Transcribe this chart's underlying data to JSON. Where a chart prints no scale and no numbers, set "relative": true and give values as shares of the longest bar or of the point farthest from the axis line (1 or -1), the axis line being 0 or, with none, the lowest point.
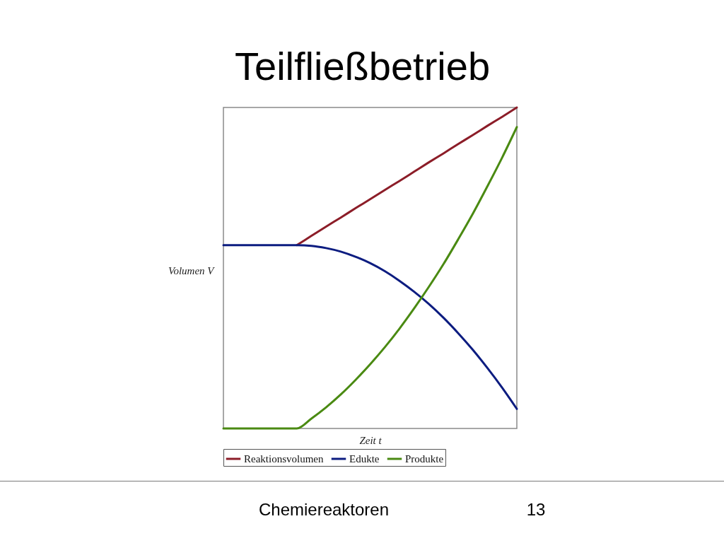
{
  "chart_data": {
    "type": "line",
    "title": "Teilfließbetrieb",
    "xlabel": "Zeit t",
    "ylabel": "Volumen V",
    "annotations": [
      "Chemiereaktoren",
      "13"
    ],
    "categories": [
      null,
      null,
      null,
      null,
      null,
      null,
      null,
      null,
      null,
      null,
      null,
      null,
      null,
      null,
      null,
      null,
      null,
      null,
      null,
      null,
      null
    ],
    "relative": true,
    "legend": "bottom",
    "line_style": "solid",
    "series": [
      {
        "name": "Reaktionsvolumen",
        "color": "#8c1d28",
        "values": [
          null,
          null,
          null,
          null,
          null,
          0.571,
          0.6,
          0.629,
          0.657,
          0.686,
          0.714,
          0.743,
          0.771,
          0.8,
          0.829,
          0.857,
          0.886,
          0.914,
          0.943,
          0.971,
          1
        ]
      },
      {
        "name": "Edukte",
        "color": "#0c1c80",
        "values": [
          0.571,
          0.571,
          0.571,
          0.571,
          0.571,
          0.571,
          0.569,
          0.562,
          0.551,
          0.535,
          0.515,
          0.49,
          0.46,
          0.426,
          0.388,
          0.345,
          0.297,
          0.245,
          0.188,
          0.127,
          0.061
        ]
      },
      {
        "name": "Produkte",
        "color": "#4a8a12",
        "values": [
          0,
          0,
          0,
          0,
          0,
          0,
          0.031,
          0.066,
          0.106,
          0.151,
          0.2,
          0.253,
          0.311,
          0.374,
          0.441,
          0.512,
          0.589,
          0.669,
          0.755,
          0.844,
          0.939
        ]
      }
    ]
  }
}
